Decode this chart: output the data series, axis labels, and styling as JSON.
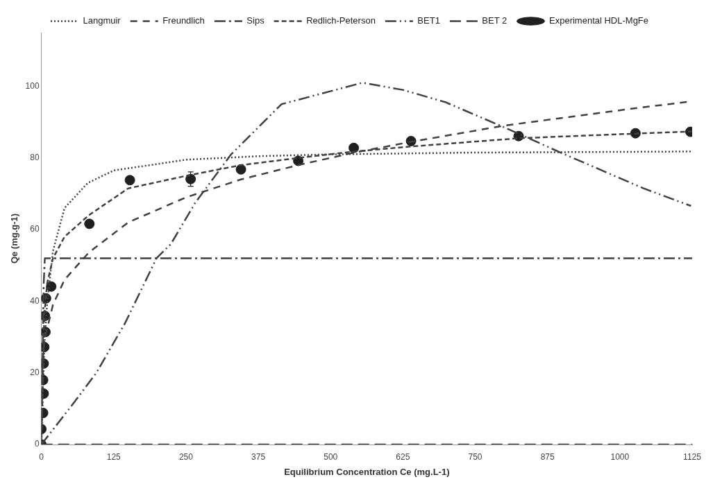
{
  "chart_data": {
    "type": "line",
    "xlabel": "Equilibrium Concentration Ce (mg.L-1)",
    "ylabel": "Qe (mg.g-1)",
    "xlim": [
      0,
      1125
    ],
    "xticks": [
      0,
      125,
      250,
      375,
      500,
      625,
      750,
      875,
      1000,
      1125
    ],
    "ylim": [
      0,
      115
    ],
    "yticks": [
      0,
      20,
      40,
      60,
      80,
      100
    ],
    "grid": false,
    "legend": "top",
    "marker": "none",
    "series": [
      {
        "name": "Langmuir",
        "color": "#404040",
        "line_style": "dotted",
        "x": [
          0,
          5,
          10,
          20,
          40,
          80,
          125,
          250,
          375,
          500,
          750,
          1000,
          1125
        ],
        "values": [
          0,
          27,
          39.5,
          54,
          66,
          73,
          76.5,
          79.5,
          80.5,
          81,
          81.5,
          81.7,
          81.8
        ]
      },
      {
        "name": "Freundlich",
        "color": "#404040",
        "line_style": "dashed",
        "x": [
          1,
          5,
          20,
          40,
          82,
          150,
          250,
          345,
          444,
          541,
          639,
          799,
          1032,
          1125
        ],
        "values": [
          20,
          29,
          39,
          46,
          53.6,
          62,
          69,
          74,
          78,
          81.5,
          84.5,
          89,
          94,
          95.8
        ]
      },
      {
        "name": "Sips",
        "color": "#404040",
        "line_style": "dashed",
        "x": [
          0,
          4,
          6,
          1125
        ],
        "values": [
          0,
          45,
          52,
          52
        ]
      },
      {
        "name": "Redlich-Peterson",
        "color": "#404040",
        "line_style": "dashed",
        "x": [
          0,
          5,
          10,
          20,
          40,
          82,
          150,
          250,
          345,
          444,
          541,
          639,
          825,
          1027,
          1125
        ],
        "values": [
          0,
          36,
          45,
          52,
          58,
          64,
          71.5,
          75,
          78,
          80,
          81.8,
          83.2,
          85.5,
          86.8,
          87.4
        ]
      },
      {
        "name": "BET1",
        "color": "#404040",
        "line_style": "dashed",
        "x": [
          0,
          53,
          95,
          145,
          199,
          224,
          266,
          328,
          415,
          555,
          625,
          698,
          798,
          899,
          1041,
          1123
        ],
        "values": [
          0,
          11,
          20,
          34,
          52,
          56,
          67.5,
          81,
          95,
          101,
          99,
          95.6,
          88.7,
          81.4,
          71.5,
          66.6
        ]
      },
      {
        "name": "BET 2",
        "color": "#404040",
        "line_style": "dashed",
        "x": [
          0,
          1125
        ],
        "values": [
          0,
          0
        ]
      },
      {
        "name": "Experimental HDL-MgFe",
        "type": "scatter",
        "marker": "circle",
        "color": "#202020",
        "x": [
          0,
          0,
          3,
          4,
          3,
          4,
          5,
          7,
          6,
          8,
          17,
          83,
          153,
          258,
          345,
          444,
          540,
          639,
          825,
          1027,
          1122
        ],
        "values": [
          0,
          4.3,
          8.8,
          14.2,
          18,
          22.6,
          27.2,
          31.4,
          35.9,
          40.8,
          44.1,
          61.6,
          73.8,
          74.1,
          76.8,
          79.2,
          82.8,
          84.7,
          86.1,
          86.9,
          87.3
        ],
        "errors": [
          null,
          null,
          null,
          null,
          null,
          null,
          null,
          null,
          null,
          null,
          null,
          null,
          null,
          2,
          null,
          null,
          null,
          null,
          null,
          null,
          null
        ]
      }
    ]
  }
}
